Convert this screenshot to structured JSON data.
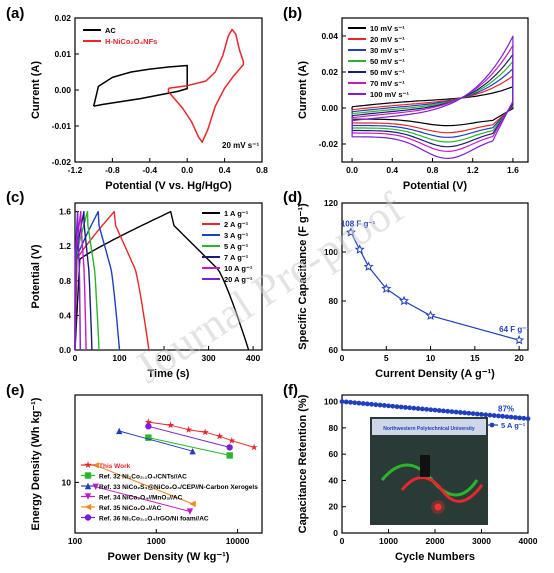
{
  "watermark": "Journal Pre-proof",
  "colors": {
    "black": "#000000",
    "red": "#e8262c",
    "blue": "#1f3fbf",
    "green": "#2bb52b",
    "navy": "#1b1b7a",
    "magenta": "#c41cc4",
    "orange": "#f08a1c",
    "purple": "#7a1fd6",
    "pink": "#ff33cc",
    "photo_bg": "#2a3a36"
  },
  "panels": {
    "a": {
      "label": "(a)",
      "xlabel": "Potential (V vs. Hg/HgO)",
      "ylabel": "Current (A)",
      "xticks": [
        "-1.2",
        "-0.8",
        "-0.4",
        "0.0",
        "0.4",
        "0.8"
      ],
      "yticks": [
        "-0.02",
        "-0.01",
        "0.00",
        "0.01",
        "0.02"
      ],
      "legend": [
        "AC",
        "H-NiCo₂O₄NFs"
      ],
      "annotation": "20 mV s⁻¹"
    },
    "b": {
      "label": "(b)",
      "xlabel": "Potential (V)",
      "ylabel": "Current (A)",
      "xticks": [
        "0.0",
        "0.4",
        "0.8",
        "1.2",
        "1.6"
      ],
      "yticks": [
        "-0.02",
        "0.00",
        "0.02",
        "0.04"
      ],
      "legend": [
        "10 mV s⁻¹",
        "20 mV s⁻¹",
        "30 mV s⁻¹",
        "50 mV s⁻¹",
        "50 mV s⁻¹",
        "70 mV s⁻¹",
        "100 mV s⁻¹"
      ]
    },
    "c": {
      "label": "(c)",
      "xlabel": "Time (s)",
      "ylabel": "Potential (V)",
      "xticks": [
        "0",
        "100",
        "200",
        "300",
        "400"
      ],
      "yticks": [
        "0.0",
        "0.4",
        "0.8",
        "1.2",
        "1.6"
      ],
      "legend": [
        "1 A g⁻¹",
        "2 A g⁻¹",
        "3 A g⁻¹",
        "5 A g⁻¹",
        "7 A g⁻¹",
        "10 A g⁻¹",
        "20 A g⁻¹"
      ]
    },
    "d": {
      "label": "(d)",
      "xlabel": "Current Density (A g⁻¹)",
      "ylabel": "Specific Capacitance (F g⁻¹)",
      "xticks": [
        "0",
        "5",
        "10",
        "15",
        "20"
      ],
      "yticks": [
        "60",
        "80",
        "100",
        "120"
      ],
      "ann_high": "108 F g⁻¹",
      "ann_low": "64 F g⁻¹"
    },
    "e": {
      "label": "(e)",
      "xlabel": "Power Density (W kg⁻¹)",
      "ylabel": "Energy Density (Wh kg⁻¹)",
      "xticks": [
        "100",
        "1000",
        "10000"
      ],
      "yticks": [
        "10"
      ],
      "legend": [
        "This Work",
        "Ref. 32 Ni₁Co₂.₁O₄/CNTs//AC",
        "Ref. 33 NiCo₂S₄@NiCo₂O₄/CEP//N-Carbon Xerogels",
        "Ref. 34 NiCo₂O₄//MnO₂//AC",
        "Ref. 35 NiCo₂O₄//AC",
        "Ref. 36 Ni₁Co₂.₁O₄/rGO/Ni foam//AC"
      ]
    },
    "f": {
      "label": "(f)",
      "xlabel": "Cycle Numbers",
      "ylabel": "Capacitance Retention (%)",
      "xticks": [
        "0",
        "1000",
        "2000",
        "3000",
        "4000"
      ],
      "yticks": [
        "0",
        "20",
        "40",
        "60",
        "80",
        "100"
      ],
      "ann_pct": "87%",
      "legend": "5 A g⁻¹",
      "photo_caption": "Northwestern Polytechnical University"
    }
  },
  "chart_data": [
    {
      "type": "line",
      "panel": "a",
      "xlabel": "Potential (V vs. Hg/HgO)",
      "ylabel": "Current (A)",
      "xlim": [
        -1.2,
        0.8
      ],
      "ylim": [
        -0.02,
        0.02
      ],
      "series": [
        {
          "name": "AC",
          "color": "#000000",
          "x": [
            -1.0,
            -0.95,
            -0.8,
            -0.6,
            -0.4,
            -0.2,
            0.0,
            0.0,
            -0.1,
            -0.3,
            -0.5,
            -0.7,
            -0.9,
            -1.0
          ],
          "y": [
            -0.0045,
            0.001,
            0.0035,
            0.005,
            0.0058,
            0.0064,
            0.0068,
            0.0004,
            -0.0004,
            -0.0014,
            -0.0024,
            -0.0032,
            -0.004,
            -0.0045
          ]
        },
        {
          "name": "H-NiCo₂O₄NFs",
          "color": "#e8262c",
          "x": [
            -0.2,
            0.0,
            0.2,
            0.3,
            0.38,
            0.44,
            0.48,
            0.52,
            0.56,
            0.6,
            0.6,
            0.5,
            0.4,
            0.3,
            0.22,
            0.16,
            0.12,
            0.05,
            -0.05,
            -0.15,
            -0.2
          ],
          "y": [
            0.0005,
            0.0012,
            0.0025,
            0.005,
            0.0095,
            0.015,
            0.0168,
            0.0155,
            0.011,
            0.008,
            0.007,
            0.004,
            0.0005,
            -0.0045,
            -0.011,
            -0.0145,
            -0.013,
            -0.009,
            -0.005,
            -0.002,
            -0.0005
          ]
        }
      ]
    },
    {
      "type": "line",
      "panel": "b",
      "xlabel": "Potential (V)",
      "ylabel": "Current (A)",
      "xlim": [
        -0.1,
        1.75
      ],
      "ylim": [
        -0.03,
        0.05
      ],
      "series": [
        {
          "name": "10 mV s⁻¹",
          "color": "#000000",
          "peak": 0.012,
          "low": -0.006
        },
        {
          "name": "20 mV s⁻¹",
          "color": "#e8262c",
          "peak": 0.018,
          "low": -0.009
        },
        {
          "name": "30 mV s⁻¹",
          "color": "#1f3fbf",
          "peak": 0.022,
          "low": -0.011
        },
        {
          "name": "50 mV s⁻¹",
          "color": "#2bb52b",
          "peak": 0.026,
          "low": -0.013
        },
        {
          "name": "50 mV s⁻¹",
          "color": "#1b1b7a",
          "peak": 0.03,
          "low": -0.015
        },
        {
          "name": "70 mV s⁻¹",
          "color": "#c41cc4",
          "peak": 0.035,
          "low": -0.017
        },
        {
          "name": "100 mV s⁻¹",
          "color": "#7a1fd6",
          "peak": 0.04,
          "low": -0.02
        }
      ]
    },
    {
      "type": "line",
      "panel": "c",
      "xlabel": "Time (s)",
      "ylabel": "Potential (V)",
      "xlim": [
        0,
        420
      ],
      "ylim": [
        0,
        1.7
      ],
      "series": [
        {
          "name": "1 A g⁻¹",
          "color": "#000000",
          "tc": 215,
          "td": 390
        },
        {
          "name": "2 A g⁻¹",
          "color": "#e8262c",
          "tc": 88,
          "td": 166
        },
        {
          "name": "3 A g⁻¹",
          "color": "#1f3fbf",
          "tc": 52,
          "td": 100
        },
        {
          "name": "5 A g⁻¹",
          "color": "#2bb52b",
          "tc": 28,
          "td": 54
        },
        {
          "name": "7 A g⁻¹",
          "color": "#1b1b7a",
          "tc": 20,
          "td": 38
        },
        {
          "name": "10 A g⁻¹",
          "color": "#c41cc4",
          "tc": 13,
          "td": 25
        },
        {
          "name": "20 A g⁻¹",
          "color": "#7a1fd6",
          "tc": 6,
          "td": 12
        }
      ]
    },
    {
      "type": "line",
      "panel": "d",
      "xlabel": "Current Density (A g⁻¹)",
      "ylabel": "Specific Capacitance (F g⁻¹)",
      "xlim": [
        0,
        21
      ],
      "ylim": [
        60,
        120
      ],
      "series": [
        {
          "color": "#1f3fbf",
          "x": [
            1,
            2,
            3,
            5,
            7,
            10,
            20
          ],
          "y": [
            108,
            101,
            94,
            85,
            80,
            74,
            64
          ]
        }
      ]
    },
    {
      "type": "scatter",
      "panel": "e",
      "xlabel": "Power Density (W kg⁻¹)",
      "ylabel": "Energy Density (Wh kg⁻¹)",
      "xscale": "log",
      "yscale": "log",
      "xlim": [
        100,
        20000
      ],
      "ylim": [
        3,
        80
      ],
      "series": [
        {
          "name": "This Work",
          "color": "#e8262c",
          "marker": "star",
          "x": [
            800,
            1500,
            2500,
            4000,
            6000,
            8500,
            16000
          ],
          "y": [
            42,
            39,
            35,
            33,
            30,
            27,
            23
          ]
        },
        {
          "name": "Ref. 32 Ni₁Co₂.₁O₄/CNTs//AC",
          "color": "#2bb52b",
          "marker": "square",
          "x": [
            800,
            8000
          ],
          "y": [
            29,
            19
          ]
        },
        {
          "name": "Ref. 33 NiCo₂S₄@NiCo₂O₄/CEP//N-Carbon Xerogels",
          "color": "#1f3fbf",
          "marker": "triangle",
          "x": [
            350,
            2800
          ],
          "y": [
            34,
            21
          ]
        },
        {
          "name": "Ref. 34 NiCo₂O₄//MnO₂//AC",
          "color": "#c41cc4",
          "marker": "tri-down",
          "x": [
            180,
            2600
          ],
          "y": [
            9,
            5
          ]
        },
        {
          "name": "Ref. 35 NiCo₂O₄//AC",
          "color": "#f08a1c",
          "marker": "tri-left",
          "x": [
            180,
            2800
          ],
          "y": [
            15,
            6
          ]
        },
        {
          "name": "Ref. 36 Ni₁Co₂.₁O₄/rGO/Ni foam//AC",
          "color": "#7a1fd6",
          "marker": "circle",
          "x": [
            800,
            8000
          ],
          "y": [
            38,
            23
          ]
        }
      ]
    },
    {
      "type": "line",
      "panel": "f",
      "xlabel": "Cycle Numbers",
      "ylabel": "Capacitance Retention (%)",
      "xlim": [
        0,
        4000
      ],
      "ylim": [
        0,
        105
      ],
      "series": [
        {
          "name": "5 A g⁻¹",
          "color": "#1f3fbf",
          "x": [
            0,
            4000
          ],
          "y": [
            100,
            87
          ]
        }
      ]
    }
  ]
}
